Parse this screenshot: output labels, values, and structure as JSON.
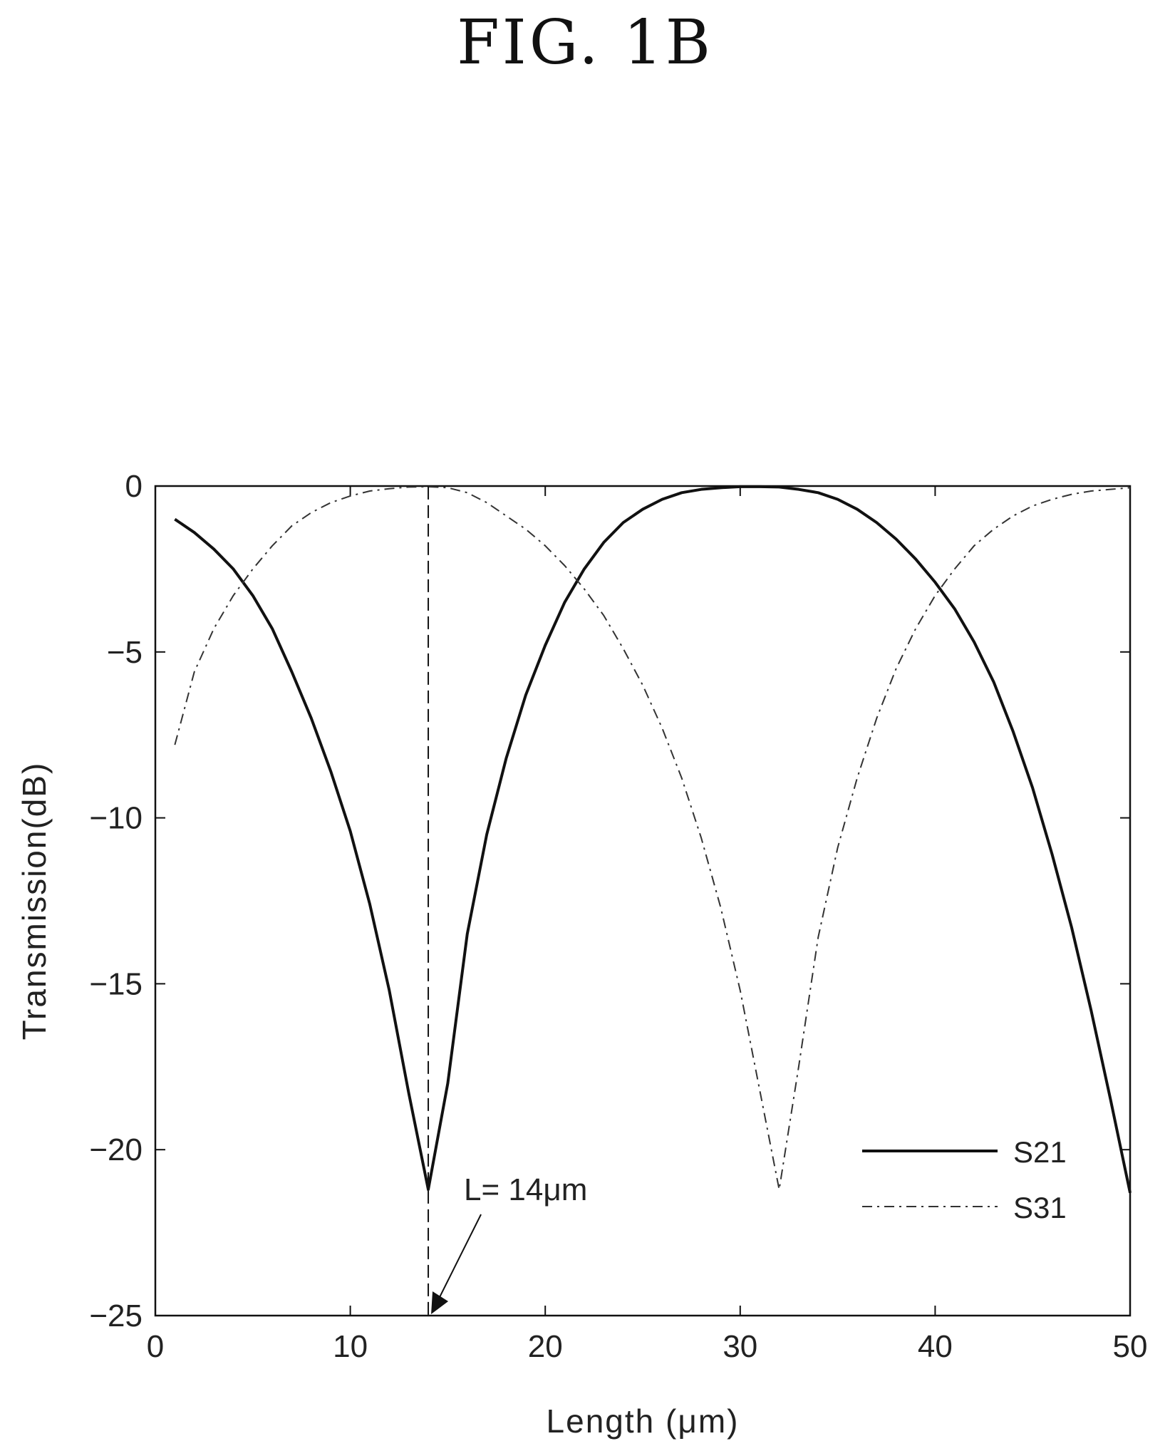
{
  "figure_label": "FIG. 1B",
  "chart_data": {
    "type": "line",
    "title": "",
    "xlabel": "Length (μm)",
    "ylabel": "Transmission(dB)",
    "xlim": [
      0,
      50
    ],
    "ylim": [
      -25,
      0
    ],
    "xticks": [
      0,
      10,
      20,
      30,
      40,
      50
    ],
    "yticks": [
      0,
      -5,
      -10,
      -15,
      -20,
      -25
    ],
    "grid": false,
    "legend_position": "bottom-right",
    "series": [
      {
        "name": "S21",
        "style": "solid",
        "color": "#111111",
        "x": [
          1,
          2,
          3,
          4,
          5,
          6,
          7,
          8,
          9,
          10,
          11,
          12,
          13,
          14,
          15,
          16,
          17,
          18,
          19,
          20,
          21,
          22,
          23,
          24,
          25,
          26,
          27,
          28,
          29,
          30,
          31,
          32,
          33,
          34,
          35,
          36,
          37,
          38,
          39,
          40,
          41,
          42,
          43,
          44,
          45,
          46,
          47,
          48,
          49,
          50
        ],
        "values": [
          -1.0,
          -1.4,
          -1.9,
          -2.5,
          -3.3,
          -4.3,
          -5.6,
          -7.0,
          -8.6,
          -10.4,
          -12.6,
          -15.2,
          -18.3,
          -21.2,
          -18.0,
          -13.5,
          -10.5,
          -8.2,
          -6.3,
          -4.8,
          -3.5,
          -2.5,
          -1.7,
          -1.1,
          -0.7,
          -0.4,
          -0.2,
          -0.1,
          -0.05,
          -0.02,
          -0.02,
          -0.03,
          -0.1,
          -0.2,
          -0.4,
          -0.7,
          -1.1,
          -1.6,
          -2.2,
          -2.9,
          -3.7,
          -4.7,
          -5.9,
          -7.4,
          -9.1,
          -11.1,
          -13.3,
          -15.8,
          -18.5,
          -21.3
        ]
      },
      {
        "name": "S31",
        "style": "dash-dot",
        "color": "#333333",
        "x": [
          1,
          2,
          3,
          4,
          5,
          6,
          7,
          8,
          9,
          10,
          11,
          12,
          13,
          14,
          15,
          16,
          17,
          18,
          19,
          20,
          21,
          22,
          23,
          24,
          25,
          26,
          27,
          28,
          29,
          30,
          31,
          32,
          33,
          34,
          35,
          36,
          37,
          38,
          39,
          40,
          41,
          42,
          43,
          44,
          45,
          46,
          47,
          48,
          49,
          50
        ],
        "values": [
          -7.8,
          -5.6,
          -4.3,
          -3.3,
          -2.5,
          -1.8,
          -1.2,
          -0.8,
          -0.5,
          -0.3,
          -0.15,
          -0.08,
          -0.03,
          -0.02,
          -0.05,
          -0.2,
          -0.5,
          -0.9,
          -1.3,
          -1.8,
          -2.4,
          -3.1,
          -3.9,
          -4.9,
          -6.0,
          -7.3,
          -8.8,
          -10.6,
          -12.7,
          -15.2,
          -18.2,
          -21.2,
          -17.5,
          -13.6,
          -10.9,
          -8.8,
          -7.0,
          -5.5,
          -4.3,
          -3.3,
          -2.5,
          -1.8,
          -1.3,
          -0.9,
          -0.6,
          -0.4,
          -0.25,
          -0.15,
          -0.1,
          -0.05
        ]
      }
    ],
    "annotations": [
      {
        "text": "L= 14μm",
        "x": 14
      }
    ]
  }
}
